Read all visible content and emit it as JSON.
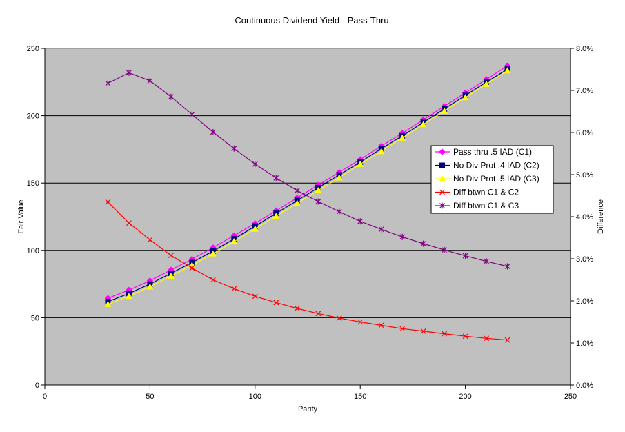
{
  "chart_data": {
    "type": "line",
    "title": "Continuous Dividend Yield - Pass-Thru",
    "xlabel": "Parity",
    "ylabel": "Fair Value",
    "y2label": "Difference",
    "xlim": [
      0,
      250
    ],
    "ylim": [
      0,
      250
    ],
    "y2lim": [
      0,
      0.08
    ],
    "x_ticks": [
      "0",
      "50",
      "100",
      "150",
      "200",
      "250"
    ],
    "y_ticks": [
      "0",
      "50",
      "100",
      "150",
      "200",
      "250"
    ],
    "y2_ticks": [
      "0.0%",
      "1.0%",
      "2.0%",
      "3.0%",
      "4.0%",
      "5.0%",
      "6.0%",
      "7.0%",
      "8.0%"
    ],
    "grid": "horizontal major",
    "plot_background": "#C0C0C0",
    "legend_position": "right",
    "x": [
      30,
      40,
      50,
      60,
      70,
      80,
      90,
      100,
      110,
      120,
      130,
      140,
      150,
      160,
      170,
      180,
      190,
      200,
      210,
      220
    ],
    "series": [
      {
        "name": "Pass thru .5 IAD (C1)",
        "axis": "left",
        "color": "#FF00FF",
        "marker": "diamond",
        "values": [
          64.5,
          70.5,
          77.5,
          85.5,
          93.5,
          102,
          111,
          120,
          129.5,
          139,
          148.5,
          158,
          167.5,
          177.5,
          187,
          197,
          207,
          217,
          227,
          237
        ]
      },
      {
        "name": "No Div Prot .4 IAD (C2)",
        "axis": "left",
        "color": "#000080",
        "marker": "square",
        "values": [
          62,
          68,
          75,
          83,
          91,
          99.5,
          108.5,
          118,
          127.5,
          137,
          146.5,
          156,
          165.5,
          175.5,
          185,
          195,
          205,
          215,
          225,
          234.5
        ]
      },
      {
        "name": "No Div Prot .5 IAD (C3)",
        "axis": "left",
        "color": "#FFFF00",
        "marker": "triangle",
        "values": [
          60,
          66,
          73,
          81,
          89,
          97.5,
          106.5,
          116,
          125.5,
          135,
          144.5,
          154,
          164,
          173.5,
          183.5,
          193.5,
          203.5,
          213.5,
          223.5,
          233.5
        ]
      },
      {
        "name": "Diff btwn C1 & C2",
        "axis": "right",
        "color": "#FF0000",
        "marker": "x",
        "values": [
          0.0435,
          0.0385,
          0.0345,
          0.0308,
          0.0278,
          0.025,
          0.0229,
          0.0211,
          0.0196,
          0.0182,
          0.017,
          0.0159,
          0.015,
          0.0142,
          0.0134,
          0.0128,
          0.0122,
          0.0116,
          0.0111,
          0.0107
        ]
      },
      {
        "name": "Diff btwn C1 & C3",
        "axis": "right",
        "color": "#800080",
        "marker": "star",
        "values": [
          0.0717,
          0.0742,
          0.0723,
          0.0685,
          0.0643,
          0.0601,
          0.0562,
          0.0525,
          0.0492,
          0.0462,
          0.0436,
          0.0412,
          0.0389,
          0.037,
          0.0352,
          0.0336,
          0.0321,
          0.0307,
          0.0294,
          0.0282
        ]
      }
    ]
  }
}
